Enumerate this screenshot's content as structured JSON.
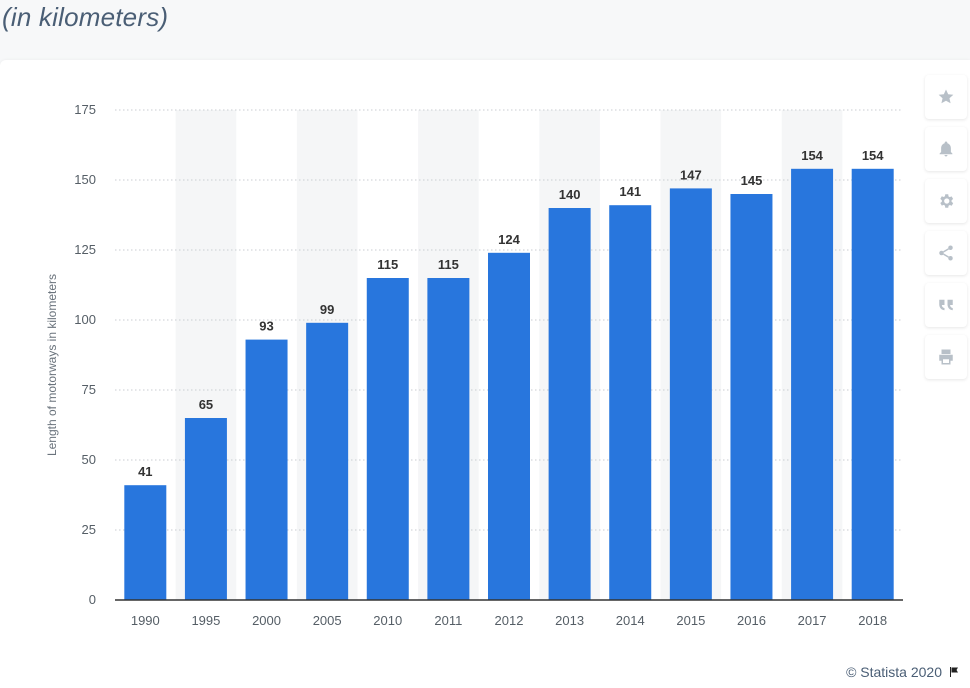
{
  "header": {
    "subtitle": "(in kilometers)"
  },
  "chart_data": {
    "type": "bar",
    "categories": [
      "1990",
      "1995",
      "2000",
      "2005",
      "2010",
      "2011",
      "2012",
      "2013",
      "2014",
      "2015",
      "2016",
      "2017",
      "2018"
    ],
    "values": [
      41,
      65,
      93,
      99,
      115,
      115,
      124,
      140,
      141,
      147,
      145,
      154,
      154
    ],
    "ylabel": "Length of motorways in kilometers",
    "xlabel": "",
    "ylim": [
      0,
      175
    ],
    "yticks": [
      0,
      25,
      50,
      75,
      100,
      125,
      150,
      175
    ],
    "grid": true,
    "bar_color": "#2876dd"
  },
  "toolbar": {
    "buttons": [
      {
        "icon": "star-icon"
      },
      {
        "icon": "bell-icon"
      },
      {
        "icon": "gear-icon"
      },
      {
        "icon": "share-icon"
      },
      {
        "icon": "quote-icon"
      },
      {
        "icon": "print-icon"
      }
    ]
  },
  "footer": {
    "credit": "© Statista 2020"
  }
}
